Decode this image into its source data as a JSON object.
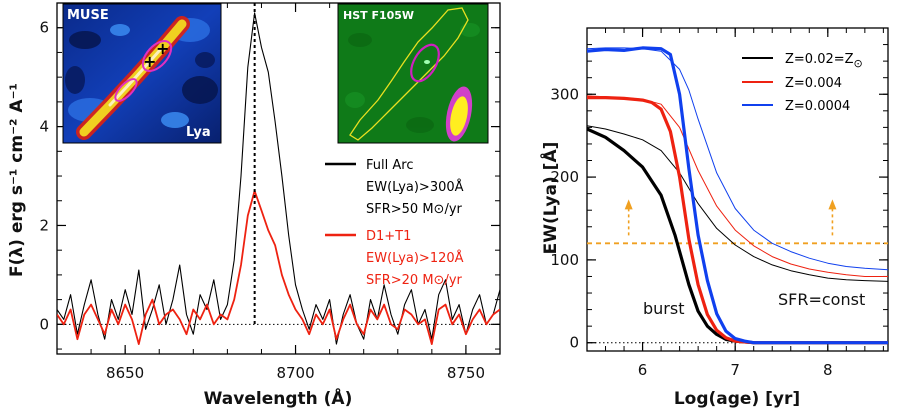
{
  "chart_data": [
    {
      "type": "line",
      "panel": "left",
      "xlabel": "Wavelength (Å)",
      "ylabel": "F(λ) erg s⁻¹ cm⁻² A⁻¹",
      "xlim": [
        8630,
        8760
      ],
      "ylim": [
        -0.6,
        6.5
      ],
      "xticks": [
        8650,
        8700,
        8750
      ],
      "yticks": [
        0,
        2,
        4,
        6
      ],
      "line_marker_x": 8688,
      "series": [
        {
          "name": "Full Arc",
          "color": "#000000",
          "x": [
            8630,
            8632,
            8634,
            8636,
            8638,
            8640,
            8642,
            8644,
            8646,
            8648,
            8650,
            8652,
            8654,
            8656,
            8658,
            8660,
            8662,
            8664,
            8666,
            8668,
            8670,
            8672,
            8674,
            8676,
            8678,
            8680,
            8682,
            8684,
            8686,
            8688,
            8690,
            8692,
            8694,
            8696,
            8698,
            8700,
            8702,
            8704,
            8706,
            8708,
            8710,
            8712,
            8714,
            8716,
            8718,
            8720,
            8722,
            8724,
            8726,
            8728,
            8730,
            8732,
            8734,
            8736,
            8738,
            8740,
            8742,
            8744,
            8746,
            8748,
            8750,
            8752,
            8754,
            8756,
            8758,
            8760
          ],
          "y": [
            0.3,
            0.1,
            0.6,
            -0.2,
            0.4,
            0.9,
            0.2,
            -0.3,
            0.5,
            0.1,
            0.7,
            0.2,
            1.1,
            -0.1,
            0.3,
            0.8,
            0.0,
            0.5,
            1.2,
            0.2,
            -0.2,
            0.6,
            0.3,
            0.9,
            0.1,
            0.4,
            1.3,
            3.0,
            5.2,
            6.3,
            5.6,
            5.1,
            4.1,
            3.0,
            1.8,
            0.8,
            0.3,
            -0.1,
            0.4,
            0.1,
            0.5,
            -0.4,
            0.2,
            0.6,
            0.0,
            -0.3,
            0.5,
            0.1,
            0.8,
            0.2,
            -0.2,
            0.4,
            0.7,
            0.0,
            0.3,
            -0.3,
            0.6,
            0.9,
            0.1,
            0.4,
            -0.2,
            0.3,
            0.6,
            0.0,
            0.2,
            0.7
          ]
        },
        {
          "name": "D1+T1",
          "color": "#ee2211",
          "x": [
            8630,
            8632,
            8634,
            8636,
            8638,
            8640,
            8642,
            8644,
            8646,
            8648,
            8650,
            8652,
            8654,
            8656,
            8658,
            8660,
            8662,
            8664,
            8666,
            8668,
            8670,
            8672,
            8674,
            8676,
            8678,
            8680,
            8682,
            8684,
            8686,
            8688,
            8690,
            8692,
            8694,
            8696,
            8698,
            8700,
            8702,
            8704,
            8706,
            8708,
            8710,
            8712,
            8714,
            8716,
            8718,
            8720,
            8722,
            8724,
            8726,
            8728,
            8730,
            8732,
            8734,
            8736,
            8738,
            8740,
            8742,
            8744,
            8746,
            8748,
            8750,
            8752,
            8754,
            8756,
            8758,
            8760
          ],
          "y": [
            0.2,
            0.0,
            0.3,
            -0.3,
            0.2,
            0.4,
            0.1,
            -0.2,
            0.3,
            0.0,
            0.4,
            0.1,
            -0.4,
            0.2,
            0.5,
            0.0,
            0.2,
            0.3,
            0.1,
            -0.2,
            0.3,
            0.1,
            0.4,
            0.0,
            0.2,
            0.1,
            0.5,
            1.2,
            2.2,
            2.7,
            2.3,
            1.9,
            1.6,
            1.0,
            0.6,
            0.3,
            0.1,
            -0.2,
            0.2,
            0.0,
            0.3,
            -0.3,
            0.1,
            0.4,
            0.0,
            -0.2,
            0.3,
            0.1,
            0.4,
            0.0,
            -0.1,
            0.3,
            0.2,
            0.0,
            0.1,
            -0.4,
            0.3,
            0.4,
            0.0,
            0.2,
            -0.2,
            0.1,
            0.3,
            0.0,
            0.2,
            0.3
          ]
        }
      ],
      "legend": [
        {
          "label": "Full Arc",
          "color": "#000000",
          "lines": [
            "EW(Lya)>300Å",
            "SFR>50 M⊙/yr"
          ]
        },
        {
          "label": "D1+T1",
          "color": "#ee2211",
          "lines": [
            "EW(Lya)>120Å",
            "SFR>20 M⊙/yr"
          ]
        }
      ],
      "insets": [
        {
          "title": "MUSE",
          "label": "Lya"
        },
        {
          "title": "HST F105W"
        }
      ]
    },
    {
      "type": "line",
      "panel": "right",
      "xlabel": "Log(age) [yr]",
      "ylabel": "EW(Lya) [Å]",
      "xlim": [
        5.4,
        8.65
      ],
      "ylim": [
        -10,
        380
      ],
      "xticks": [
        6,
        7,
        8
      ],
      "yticks": [
        0,
        100,
        200,
        300
      ],
      "threshold_y": 120,
      "threshold_arrows_x": [
        5.85,
        8.05
      ],
      "threshold_color": "#f0a020",
      "series": [
        {
          "name": "Z=0.02=Z⊙ burst",
          "color": "#000000",
          "width": 3.2,
          "x": [
            5.4,
            5.6,
            5.8,
            6.0,
            6.2,
            6.35,
            6.5,
            6.6,
            6.7,
            6.8,
            6.9,
            7.0,
            7.1,
            7.2,
            7.4,
            7.6,
            8.0,
            8.65
          ],
          "y": [
            258,
            248,
            232,
            212,
            178,
            130,
            70,
            38,
            20,
            10,
            4,
            2,
            1,
            0,
            0,
            0,
            0,
            0
          ]
        },
        {
          "name": "Z=0.02=Z⊙ const",
          "color": "#000000",
          "width": 1,
          "x": [
            5.4,
            5.6,
            5.8,
            6.0,
            6.2,
            6.4,
            6.6,
            6.8,
            7.0,
            7.2,
            7.4,
            7.6,
            7.8,
            8.0,
            8.2,
            8.4,
            8.65
          ],
          "y": [
            262,
            258,
            252,
            245,
            232,
            205,
            168,
            138,
            118,
            104,
            94,
            87,
            82,
            78,
            76,
            75,
            74
          ]
        },
        {
          "name": "Z=0.004 burst",
          "color": "#ee2211",
          "width": 3.2,
          "x": [
            5.4,
            5.6,
            5.8,
            6.0,
            6.1,
            6.2,
            6.3,
            6.4,
            6.5,
            6.6,
            6.7,
            6.8,
            6.9,
            7.0,
            7.1,
            7.2,
            7.4,
            8.0,
            8.65
          ],
          "y": [
            296,
            296,
            295,
            293,
            290,
            282,
            255,
            200,
            125,
            70,
            34,
            15,
            6,
            2,
            1,
            0,
            0,
            0,
            0
          ]
        },
        {
          "name": "Z=0.004 const",
          "color": "#ee2211",
          "width": 1,
          "x": [
            5.4,
            5.6,
            5.8,
            6.0,
            6.2,
            6.4,
            6.6,
            6.8,
            7.0,
            7.2,
            7.4,
            7.6,
            7.8,
            8.0,
            8.2,
            8.4,
            8.65
          ],
          "y": [
            298,
            297,
            296,
            294,
            288,
            260,
            208,
            165,
            136,
            117,
            104,
            95,
            89,
            85,
            82,
            80,
            80
          ]
        },
        {
          "name": "Z=0.0004 burst",
          "color": "#1040ee",
          "width": 3.2,
          "x": [
            5.4,
            5.6,
            5.8,
            6.0,
            6.2,
            6.3,
            6.4,
            6.5,
            6.6,
            6.7,
            6.8,
            6.9,
            7.0,
            7.1,
            7.2,
            7.4,
            8.0,
            8.65
          ],
          "y": [
            352,
            354,
            353,
            356,
            355,
            348,
            300,
            210,
            130,
            75,
            35,
            14,
            5,
            2,
            0,
            0,
            0,
            0
          ]
        },
        {
          "name": "Z=0.0004 const",
          "color": "#1040ee",
          "width": 1,
          "x": [
            5.4,
            5.6,
            5.8,
            6.0,
            6.2,
            6.4,
            6.5,
            6.6,
            6.8,
            7.0,
            7.2,
            7.4,
            7.6,
            7.8,
            8.0,
            8.2,
            8.4,
            8.65
          ],
          "y": [
            355,
            356,
            356,
            355,
            352,
            330,
            305,
            270,
            205,
            162,
            136,
            120,
            110,
            102,
            96,
            92,
            90,
            88
          ]
        }
      ],
      "legend": [
        {
          "label": "Z=0.02=Z",
          "suffix": "⊙",
          "color": "#000000"
        },
        {
          "label": "Z=0.004",
          "color": "#ee2211"
        },
        {
          "label": "Z=0.0004",
          "color": "#1040ee"
        }
      ],
      "annotations": [
        "burst",
        "SFR=const"
      ]
    }
  ]
}
